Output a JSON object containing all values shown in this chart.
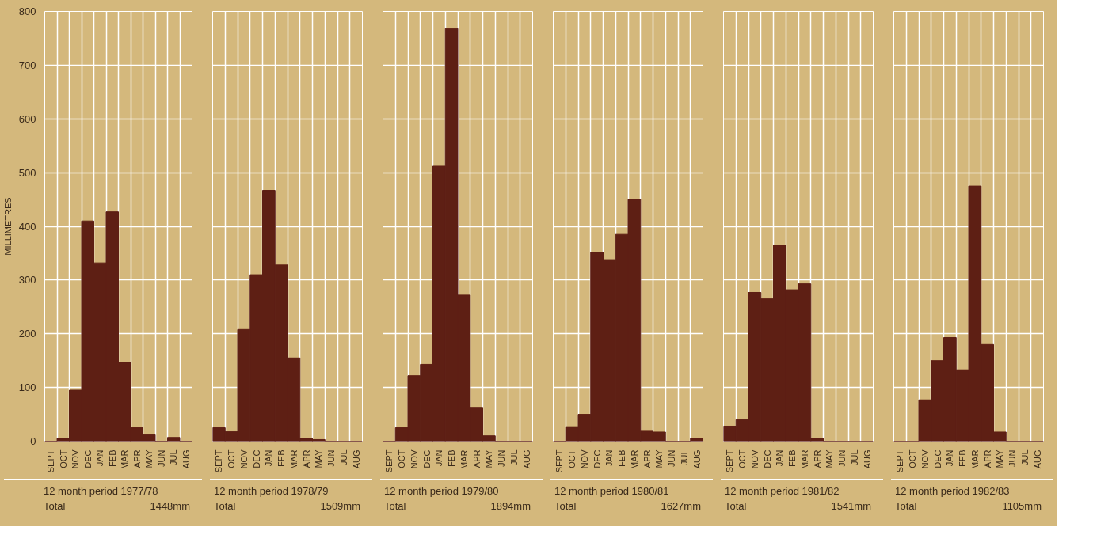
{
  "chart_data": [
    {
      "type": "bar",
      "ylabel": "MILLIMETRES",
      "categories": [
        "SEPT",
        "OCT",
        "NOV",
        "DEC",
        "JAN",
        "FEB",
        "MAR",
        "APR",
        "MAY",
        "JUN",
        "JUL",
        "AUG"
      ],
      "values": [
        0,
        5,
        95,
        410,
        332,
        427,
        147,
        25,
        12,
        0,
        7,
        0
      ],
      "color": "#5e1f14",
      "ylim": [
        0,
        800
      ],
      "yticks": [
        0,
        100,
        200,
        300,
        400,
        500,
        600,
        700,
        800
      ],
      "grid": true,
      "annotations": [
        "12 month period 1977/78",
        "Total",
        "1448mm"
      ]
    },
    {
      "type": "bar",
      "categories": [
        "SEPT",
        "OCT",
        "NOV",
        "DEC",
        "JAN",
        "FEB",
        "MAR",
        "APR",
        "MAY",
        "JUN",
        "JUL",
        "AUG"
      ],
      "values": [
        25,
        18,
        208,
        310,
        467,
        328,
        155,
        5,
        3,
        0,
        0,
        0
      ],
      "color": "#5e1f14",
      "ylim": [
        0,
        800
      ],
      "yticks": [
        0,
        100,
        200,
        300,
        400,
        500,
        600,
        700,
        800
      ],
      "grid": true,
      "tick_labels": "x",
      "annotations": [
        "12 month period 1978/79",
        "Total",
        "1509mm"
      ]
    },
    {
      "type": "bar",
      "categories": [
        "SEPT",
        "OCT",
        "NOV",
        "DEC",
        "JAN",
        "FEB",
        "MAR",
        "APR",
        "MAY",
        "JUN",
        "JUL",
        "AUG"
      ],
      "values": [
        0,
        25,
        122,
        143,
        512,
        768,
        272,
        63,
        10,
        0,
        0,
        0
      ],
      "color": "#5e1f14",
      "ylim": [
        0,
        800
      ],
      "yticks": [
        0,
        100,
        200,
        300,
        400,
        500,
        600,
        700,
        800
      ],
      "grid": true,
      "tick_labels": "x",
      "annotations": [
        "12 month period 1979/80",
        "Total",
        "1894mm"
      ]
    },
    {
      "type": "bar",
      "categories": [
        "SEPT",
        "OCT",
        "NOV",
        "DEC",
        "JAN",
        "FEB",
        "MAR",
        "APR",
        "MAY",
        "JUN",
        "JUL",
        "AUG"
      ],
      "values": [
        0,
        27,
        50,
        352,
        338,
        385,
        450,
        20,
        17,
        0,
        0,
        5
      ],
      "color": "#5e1f14",
      "ylim": [
        0,
        800
      ],
      "yticks": [
        0,
        100,
        200,
        300,
        400,
        500,
        600,
        700,
        800
      ],
      "grid": true,
      "tick_labels": "x",
      "annotations": [
        "12 month period 1980/81",
        "Total",
        "1627mm"
      ]
    },
    {
      "type": "bar",
      "categories": [
        "SEPT",
        "OCT",
        "NOV",
        "DEC",
        "JAN",
        "FEB",
        "MAR",
        "APR",
        "MAY",
        "JUN",
        "JUL",
        "AUG"
      ],
      "values": [
        28,
        40,
        277,
        265,
        365,
        282,
        293,
        5,
        0,
        0,
        0,
        0
      ],
      "color": "#5e1f14",
      "ylim": [
        0,
        800
      ],
      "yticks": [
        0,
        100,
        200,
        300,
        400,
        500,
        600,
        700,
        800
      ],
      "grid": true,
      "tick_labels": "x",
      "annotations": [
        "12 month period 1981/82",
        "Total",
        "1541mm"
      ]
    },
    {
      "type": "bar",
      "categories": [
        "SEPT",
        "OCT",
        "NOV",
        "DEC",
        "JAN",
        "FEB",
        "MAR",
        "APR",
        "MAY",
        "JUN",
        "JUL",
        "AUG"
      ],
      "values": [
        0,
        0,
        77,
        150,
        193,
        133,
        475,
        180,
        17,
        0,
        0,
        0
      ],
      "color": "#5e1f14",
      "ylim": [
        0,
        800
      ],
      "yticks": [
        0,
        100,
        200,
        300,
        400,
        500,
        600,
        700,
        800
      ],
      "grid": true,
      "tick_labels": "x",
      "annotations": [
        "12 month period 1982/83",
        "Total",
        "1105mm"
      ]
    }
  ]
}
